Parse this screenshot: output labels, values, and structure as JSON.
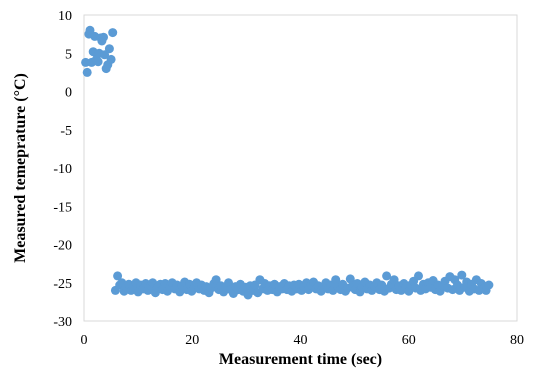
{
  "chart_data": {
    "type": "scatter",
    "title": "",
    "xlabel": "Measurement time (sec)",
    "ylabel": "Measured temeprature (°C)",
    "xlim": [
      0,
      80
    ],
    "ylim": [
      -30,
      10
    ],
    "x_ticks": [
      0,
      20,
      40,
      60,
      80
    ],
    "y_ticks": [
      10,
      5,
      0,
      -5,
      -10,
      -15,
      -20,
      -25,
      -30
    ],
    "grid": false,
    "legend": "none",
    "marker_color": "#5B9BD5",
    "series": [
      {
        "points": [
          [
            0.3,
            3.8
          ],
          [
            0.6,
            2.5
          ],
          [
            0.9,
            7.5
          ],
          [
            1.1,
            8.0
          ],
          [
            1.4,
            3.8
          ],
          [
            1.7,
            5.2
          ],
          [
            2.0,
            7.2
          ],
          [
            2.3,
            4.2
          ],
          [
            2.6,
            3.9
          ],
          [
            2.8,
            5.0
          ],
          [
            3.1,
            7.0
          ],
          [
            3.3,
            6.6
          ],
          [
            3.6,
            7.1
          ],
          [
            3.8,
            4.8
          ],
          [
            4.1,
            3.0
          ],
          [
            4.4,
            3.5
          ],
          [
            4.7,
            5.6
          ],
          [
            5.0,
            4.2
          ],
          [
            5.3,
            7.7
          ],
          [
            5.8,
            -26.0
          ],
          [
            6.2,
            -24.1
          ],
          [
            6.6,
            -25.3
          ],
          [
            7.0,
            -25.0
          ],
          [
            7.4,
            -26.1
          ],
          [
            7.8,
            -25.6
          ],
          [
            8.3,
            -25.2
          ],
          [
            8.7,
            -26.0
          ],
          [
            9.1,
            -25.5
          ],
          [
            9.6,
            -25.0
          ],
          [
            10.0,
            -26.2
          ],
          [
            10.5,
            -25.3
          ],
          [
            10.9,
            -25.8
          ],
          [
            11.4,
            -25.1
          ],
          [
            11.8,
            -26.0
          ],
          [
            12.3,
            -25.4
          ],
          [
            12.7,
            -25.0
          ],
          [
            13.2,
            -26.3
          ],
          [
            13.6,
            -25.6
          ],
          [
            14.1,
            -25.2
          ],
          [
            14.5,
            -25.9
          ],
          [
            15.0,
            -25.1
          ],
          [
            15.4,
            -26.1
          ],
          [
            15.9,
            -25.5
          ],
          [
            16.3,
            -25.0
          ],
          [
            16.8,
            -25.8
          ],
          [
            17.2,
            -25.3
          ],
          [
            17.7,
            -26.2
          ],
          [
            18.1,
            -25.4
          ],
          [
            18.6,
            -24.9
          ],
          [
            19.0,
            -25.9
          ],
          [
            19.5,
            -25.2
          ],
          [
            19.9,
            -26.1
          ],
          [
            20.4,
            -25.6
          ],
          [
            20.8,
            -25.0
          ],
          [
            21.3,
            -25.8
          ],
          [
            21.7,
            -25.3
          ],
          [
            22.2,
            -26.0
          ],
          [
            22.6,
            -25.5
          ],
          [
            23.1,
            -26.3
          ],
          [
            23.5,
            -25.7
          ],
          [
            24.0,
            -25.1
          ],
          [
            24.4,
            -24.6
          ],
          [
            24.9,
            -25.9
          ],
          [
            25.3,
            -25.4
          ],
          [
            25.8,
            -26.2
          ],
          [
            26.2,
            -25.6
          ],
          [
            26.7,
            -25.0
          ],
          [
            27.1,
            -25.9
          ],
          [
            27.6,
            -26.4
          ],
          [
            28.0,
            -25.5
          ],
          [
            28.5,
            -25.9
          ],
          [
            28.9,
            -25.2
          ],
          [
            29.4,
            -26.1
          ],
          [
            29.8,
            -25.6
          ],
          [
            30.3,
            -26.6
          ],
          [
            30.7,
            -25.4
          ],
          [
            31.2,
            -26.0
          ],
          [
            31.6,
            -25.3
          ],
          [
            32.1,
            -26.3
          ],
          [
            32.5,
            -24.6
          ],
          [
            33.0,
            -25.8
          ],
          [
            33.4,
            -25.1
          ],
          [
            33.9,
            -26.0
          ],
          [
            34.3,
            -25.4
          ],
          [
            34.8,
            -25.9
          ],
          [
            35.2,
            -25.2
          ],
          [
            35.7,
            -26.2
          ],
          [
            36.1,
            -25.5
          ],
          [
            36.6,
            -25.8
          ],
          [
            37.0,
            -25.1
          ],
          [
            37.5,
            -25.9
          ],
          [
            37.9,
            -25.4
          ],
          [
            38.4,
            -26.1
          ],
          [
            38.8,
            -25.3
          ],
          [
            39.3,
            -25.8
          ],
          [
            39.7,
            -25.2
          ],
          [
            40.2,
            -26.0
          ],
          [
            40.6,
            -25.5
          ],
          [
            41.1,
            -25.0
          ],
          [
            41.5,
            -25.9
          ],
          [
            42.0,
            -25.3
          ],
          [
            42.4,
            -24.9
          ],
          [
            42.9,
            -25.8
          ],
          [
            43.3,
            -25.4
          ],
          [
            43.8,
            -26.1
          ],
          [
            44.2,
            -25.6
          ],
          [
            44.7,
            -25.0
          ],
          [
            45.1,
            -25.8
          ],
          [
            45.6,
            -25.3
          ],
          [
            46.0,
            -26.0
          ],
          [
            46.5,
            -24.6
          ],
          [
            46.9,
            -25.5
          ],
          [
            47.4,
            -25.9
          ],
          [
            47.8,
            -25.2
          ],
          [
            48.3,
            -26.1
          ],
          [
            48.7,
            -25.7
          ],
          [
            49.2,
            -24.5
          ],
          [
            49.6,
            -25.4
          ],
          [
            50.1,
            -25.9
          ],
          [
            50.5,
            -25.1
          ],
          [
            51.0,
            -26.2
          ],
          [
            51.4,
            -25.6
          ],
          [
            51.9,
            -24.9
          ],
          [
            52.3,
            -25.8
          ],
          [
            52.8,
            -25.3
          ],
          [
            53.2,
            -26.0
          ],
          [
            53.7,
            -25.5
          ],
          [
            54.1,
            -25.0
          ],
          [
            54.6,
            -25.9
          ],
          [
            55.0,
            -25.3
          ],
          [
            55.5,
            -26.1
          ],
          [
            55.9,
            -24.1
          ],
          [
            56.4,
            -25.7
          ],
          [
            56.8,
            -25.2
          ],
          [
            57.3,
            -24.6
          ],
          [
            57.7,
            -25.9
          ],
          [
            58.2,
            -25.4
          ],
          [
            58.6,
            -26.0
          ],
          [
            59.1,
            -25.1
          ],
          [
            59.5,
            -25.6
          ],
          [
            60.0,
            -26.1
          ],
          [
            60.4,
            -25.3
          ],
          [
            60.9,
            -24.8
          ],
          [
            61.3,
            -25.7
          ],
          [
            61.8,
            -24.1
          ],
          [
            62.2,
            -26.0
          ],
          [
            62.7,
            -25.2
          ],
          [
            63.1,
            -25.8
          ],
          [
            63.6,
            -25.0
          ],
          [
            64.0,
            -25.6
          ],
          [
            64.5,
            -24.7
          ],
          [
            64.9,
            -25.9
          ],
          [
            65.4,
            -25.3
          ],
          [
            65.8,
            -26.1
          ],
          [
            66.3,
            -25.4
          ],
          [
            66.7,
            -24.8
          ],
          [
            67.2,
            -25.7
          ],
          [
            67.6,
            -24.2
          ],
          [
            68.1,
            -25.9
          ],
          [
            68.5,
            -24.6
          ],
          [
            69.0,
            -25.3
          ],
          [
            69.4,
            -26.0
          ],
          [
            69.8,
            -24.0
          ],
          [
            70.3,
            -25.6
          ],
          [
            70.7,
            -24.9
          ],
          [
            71.2,
            -26.1
          ],
          [
            71.6,
            -25.2
          ],
          [
            72.1,
            -25.8
          ],
          [
            72.5,
            -24.6
          ],
          [
            73.0,
            -26.0
          ],
          [
            73.4,
            -25.1
          ],
          [
            73.9,
            -25.7
          ],
          [
            74.3,
            -26.0
          ],
          [
            74.8,
            -25.3
          ]
        ]
      }
    ]
  }
}
